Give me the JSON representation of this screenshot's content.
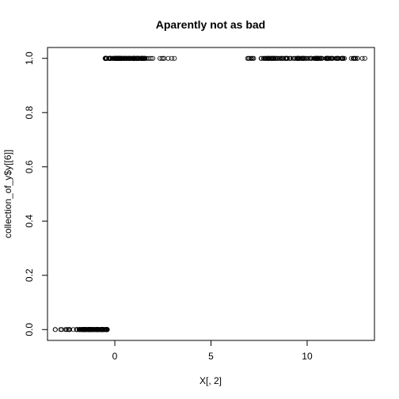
{
  "chart_data": {
    "type": "scatter",
    "title": "Aparently not as bad",
    "xlabel": "X[, 2]",
    "ylabel": "collection_of_y$y[[6]]",
    "xlim": [
      -3.5,
      13.5
    ],
    "ylim": [
      -0.04,
      1.04
    ],
    "x_ticks": [
      0,
      5,
      10
    ],
    "y_ticks": [
      0.0,
      0.2,
      0.4,
      0.6,
      0.8,
      1.0
    ],
    "x_tick_labels": [
      "0",
      "5",
      "10"
    ],
    "y_tick_labels": [
      "0.0",
      "0.2",
      "0.4",
      "0.6",
      "0.8",
      "1.0"
    ],
    "grid": false,
    "marker": "open-circle",
    "series": [
      {
        "clusters": [
          {
            "y": 0,
            "x_range": [
              -3.1,
              -0.4
            ],
            "x_dense_range": [
              -2.0,
              -0.4
            ]
          },
          {
            "y": 1,
            "x_range": [
              -0.5,
              3.1
            ],
            "x_dense_range": [
              -0.5,
              1.6
            ]
          },
          {
            "y": 1,
            "x_range": [
              6.9,
              13.0
            ],
            "x_dense_range": [
              7.8,
              11.9
            ]
          }
        ]
      }
    ]
  }
}
